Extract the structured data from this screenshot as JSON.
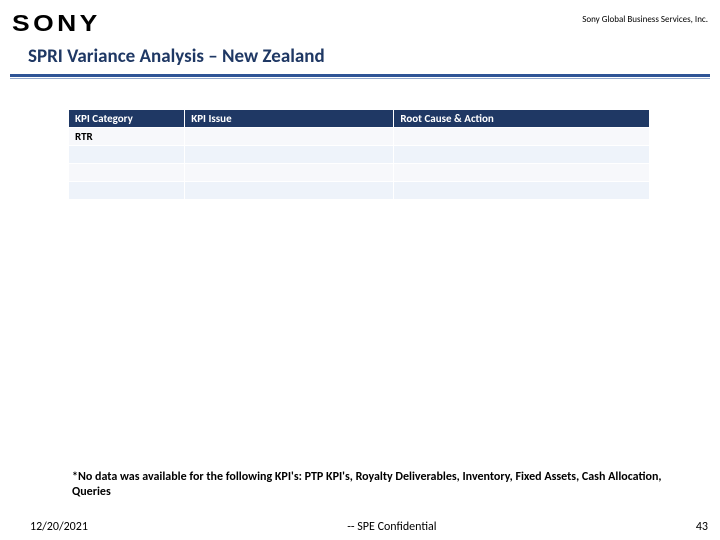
{
  "header": {
    "logo_text": "SONY",
    "company": "Sony Global Business Services, Inc."
  },
  "title": "SPRI Variance Analysis – New Zealand",
  "table": {
    "columns": [
      "KPI Category",
      "KPI Issue",
      "Root Cause & Action"
    ],
    "rows": [
      [
        "RTR",
        "",
        ""
      ],
      [
        "",
        "",
        ""
      ],
      [
        "",
        "",
        ""
      ],
      [
        "",
        "",
        ""
      ]
    ],
    "header_bg": "#1f3864",
    "header_fg": "#ffffff",
    "row_odd_bg": "#eef3fa",
    "row_even_bg": "#f7f8fb"
  },
  "footnote": "*No data was available for the following KPI's:  PTP KPI's, Royalty Deliverables, Inventory, Fixed Assets, Cash Allocation, Queries",
  "footer": {
    "date": "12/20/2021",
    "confidential": "-- SPE Confidential",
    "page": "43"
  },
  "colors": {
    "title_color": "#1f3864",
    "rule_color": "#2f5496"
  }
}
